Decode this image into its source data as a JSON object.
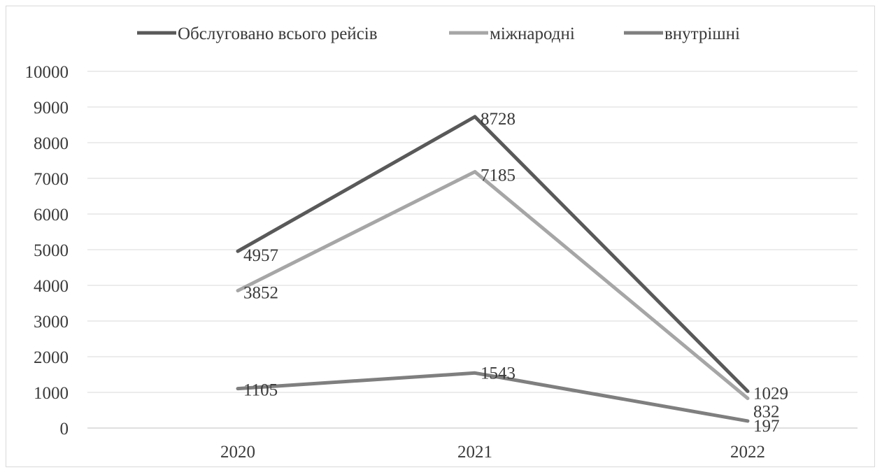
{
  "chart_data": {
    "type": "line",
    "title": "",
    "xlabel": "",
    "ylabel": "",
    "categories": [
      "2020",
      "2021",
      "2022"
    ],
    "ylim": [
      0,
      10000
    ],
    "yticks": [
      0,
      1000,
      2000,
      3000,
      4000,
      5000,
      6000,
      7000,
      8000,
      9000,
      10000
    ],
    "grid": true,
    "legend": "top",
    "series": [
      {
        "name": "Обслуговано всього рейсів",
        "values": [
          4957,
          8728,
          1029
        ],
        "color": "#595959"
      },
      {
        "name": "міжнародні",
        "values": [
          3852,
          7185,
          832
        ],
        "color": "#a6a6a6"
      },
      {
        "name": "внутрішні",
        "values": [
          1105,
          1543,
          197
        ],
        "color": "#7f7f7f"
      }
    ]
  }
}
